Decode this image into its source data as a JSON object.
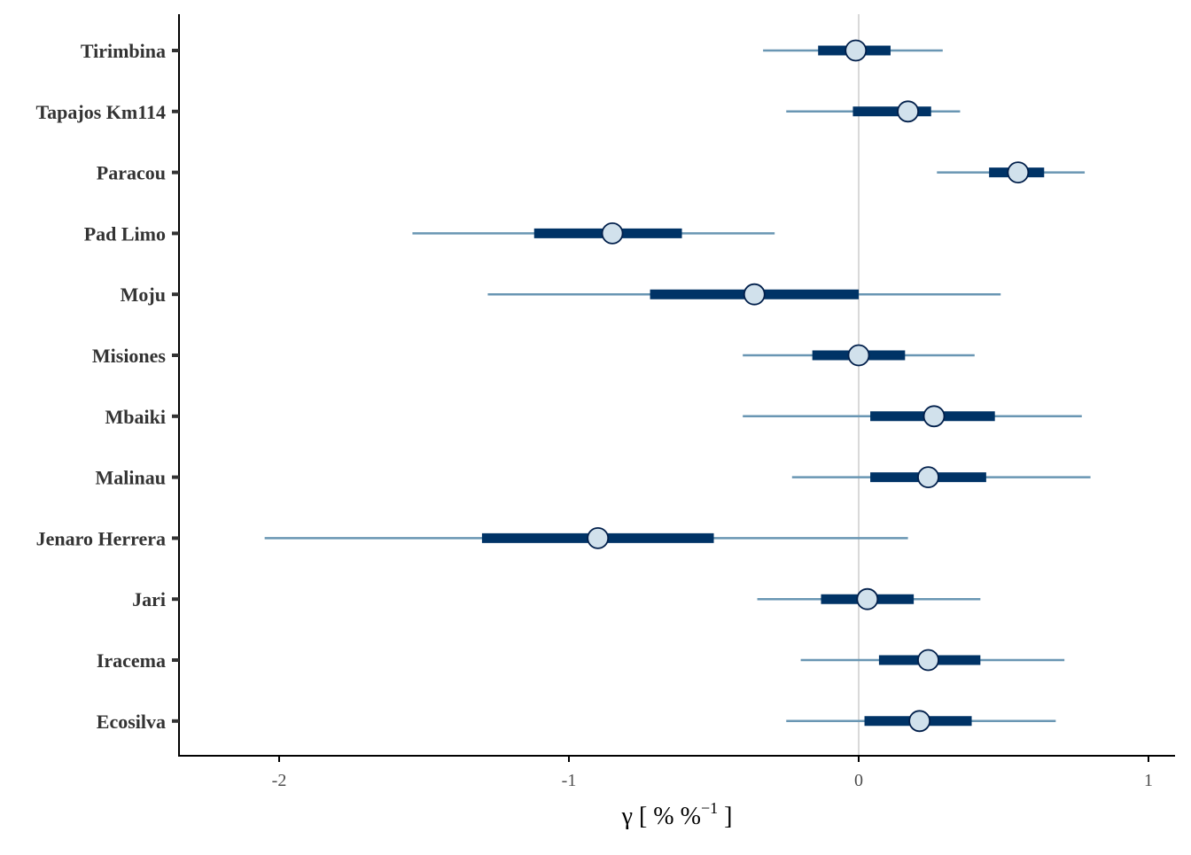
{
  "chart_data": {
    "type": "forest",
    "title": "",
    "xlabel": {
      "symbol": "γ",
      "prefix": " [ % %",
      "superscript": "−1",
      "suffix": " ]"
    },
    "ylabel": "",
    "xlim": [
      -2.35,
      1.1
    ],
    "xticks": [
      -2,
      -1,
      0,
      1
    ],
    "xtick_labels": [
      "-2",
      "-1",
      "0",
      "1"
    ],
    "reference_line": 0,
    "grid": false,
    "legend": "none",
    "colors": {
      "inner_interval": "#003366",
      "outer_interval": "#6996b3",
      "point_fill": "#d1e1ec",
      "point_stroke": "#011f4b",
      "reference_line": "#d9d9d9",
      "axis": "#000000",
      "label": "#333333"
    },
    "sites": [
      {
        "name": "Tirimbina",
        "median": -0.01,
        "inner": [
          -0.14,
          0.11
        ],
        "outer": [
          -0.33,
          0.29
        ]
      },
      {
        "name": "Tapajos Km114",
        "median": 0.17,
        "inner": [
          -0.02,
          0.25
        ],
        "outer": [
          -0.25,
          0.35
        ]
      },
      {
        "name": "Paracou",
        "median": 0.55,
        "inner": [
          0.45,
          0.64
        ],
        "outer": [
          0.27,
          0.78
        ]
      },
      {
        "name": "Pad Limo",
        "median": -0.85,
        "inner": [
          -1.12,
          -0.61
        ],
        "outer": [
          -1.54,
          -0.29
        ]
      },
      {
        "name": "Moju",
        "median": -0.36,
        "inner": [
          -0.72,
          0.0
        ],
        "outer": [
          -1.28,
          0.49
        ]
      },
      {
        "name": "Misiones",
        "median": 0.0,
        "inner": [
          -0.16,
          0.16
        ],
        "outer": [
          -0.4,
          0.4
        ]
      },
      {
        "name": "Mbaiki",
        "median": 0.26,
        "inner": [
          0.04,
          0.47
        ],
        "outer": [
          -0.4,
          0.77
        ]
      },
      {
        "name": "Malinau",
        "median": 0.24,
        "inner": [
          0.04,
          0.44
        ],
        "outer": [
          -0.23,
          0.8
        ]
      },
      {
        "name": "Jenaro Herrera",
        "median": -0.9,
        "inner": [
          -1.3,
          -0.5
        ],
        "outer": [
          -2.05,
          0.17
        ]
      },
      {
        "name": "Jari",
        "median": 0.03,
        "inner": [
          -0.13,
          0.19
        ],
        "outer": [
          -0.35,
          0.42
        ]
      },
      {
        "name": "Iracema",
        "median": 0.24,
        "inner": [
          0.07,
          0.42
        ],
        "outer": [
          -0.2,
          0.71
        ]
      },
      {
        "name": "Ecosilva",
        "median": 0.21,
        "inner": [
          0.02,
          0.39
        ],
        "outer": [
          -0.25,
          0.68
        ]
      }
    ]
  }
}
